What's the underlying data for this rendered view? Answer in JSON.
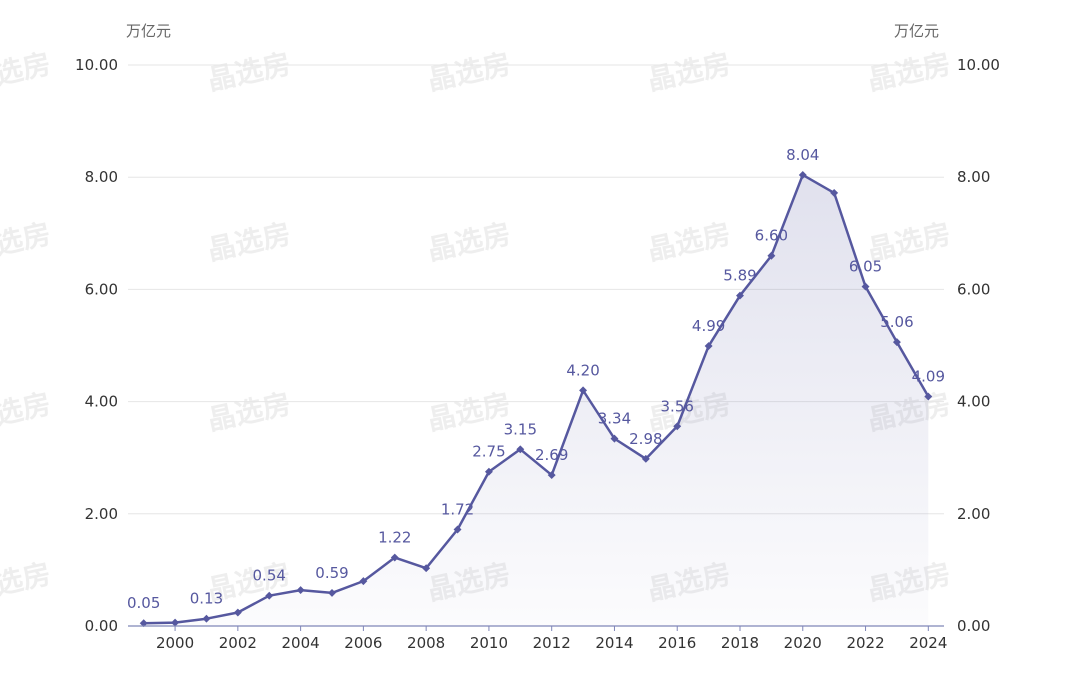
{
  "chart_data": {
    "type": "area",
    "title": "",
    "xlabel": "",
    "ylabel": "万亿元",
    "y_unit_left": "万亿元",
    "y_unit_right": "万亿元",
    "ylim": [
      0,
      10
    ],
    "y_ticks": [
      "0.00",
      "2.00",
      "4.00",
      "6.00",
      "8.00",
      "10.00"
    ],
    "x_ticks": [
      "2000",
      "2002",
      "2004",
      "2006",
      "2008",
      "2010",
      "2012",
      "2014",
      "2016",
      "2018",
      "2020",
      "2022",
      "2024"
    ],
    "x": [
      1999,
      2000,
      2001,
      2002,
      2003,
      2004,
      2005,
      2006,
      2007,
      2008,
      2009,
      2010,
      2011,
      2012,
      2013,
      2014,
      2015,
      2016,
      2017,
      2018,
      2019,
      2020,
      2021,
      2022,
      2023,
      2024
    ],
    "series": [
      {
        "values": [
          0.05,
          0.06,
          0.13,
          0.24,
          0.54,
          0.64,
          0.59,
          0.8,
          1.22,
          1.03,
          1.72,
          2.75,
          3.15,
          2.69,
          4.2,
          3.34,
          2.98,
          3.56,
          4.99,
          5.89,
          6.6,
          8.04,
          7.72,
          6.05,
          5.06,
          4.09
        ],
        "labels": [
          "0.05",
          "",
          "0.13",
          "",
          "0.54",
          "",
          "0.59",
          "",
          "1.22",
          "",
          "1.72",
          "2.75",
          "3.15",
          "2.69",
          "4.20",
          "3.34",
          "2.98",
          "3.56",
          "4.99",
          "5.89",
          "6.60",
          "8.04",
          "",
          "6.05",
          "5.06",
          "4.09"
        ]
      }
    ],
    "grid": true,
    "line_color": "#56589f",
    "area_color": "#56589f"
  },
  "watermark": {
    "text": "晶选房",
    "color": "#cfcfcf"
  }
}
